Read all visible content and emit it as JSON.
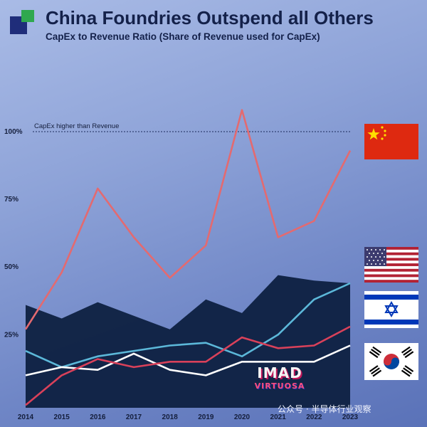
{
  "header": {
    "title": "China Foundries Outspend all Others",
    "subtitle": "CapEx to Revenue Ratio (Share of Revenue used for CapEx)"
  },
  "annotation": "CapEx higher than Revenue",
  "watermark": "公众号 · 半导体行业观察",
  "stamp": {
    "line1": "IMAD",
    "line2": "VIRTUOSA"
  },
  "colors": {
    "China": "#e36a70",
    "United States": "#0f2143",
    "Israel": "#5cb8d9",
    "South Korea": "#ffffff",
    "red_line_2": "#d9415a"
  },
  "flags": [
    "China",
    "United States",
    "Israel",
    "South Korea"
  ],
  "chart_data": {
    "type": "line",
    "title": "China Foundries Outspend all Others",
    "subtitle": "CapEx to Revenue Ratio (Share of Revenue used for CapEx)",
    "x": [
      "2014",
      "2015",
      "2016",
      "2017",
      "2018",
      "2019",
      "2020",
      "2021",
      "2022",
      "2023"
    ],
    "y_ticks": [
      "25%",
      "50%",
      "75%",
      "100%"
    ],
    "ylim": [
      -0.02,
      1.12
    ],
    "reference_line": {
      "y": 1.0,
      "label": "CapEx higher than Revenue"
    },
    "series": [
      {
        "flag": "United States",
        "style": "area",
        "values": [
          0.36,
          0.31,
          0.37,
          0.32,
          0.27,
          0.38,
          0.33,
          0.47,
          0.45,
          0.44
        ]
      },
      {
        "flag": "China",
        "style": "line",
        "values": [
          0.27,
          0.48,
          0.79,
          0.61,
          0.46,
          0.58,
          1.08,
          0.61,
          0.67,
          0.93
        ]
      },
      {
        "flag": "Israel",
        "style": "line",
        "values": [
          0.19,
          0.13,
          0.17,
          0.19,
          0.21,
          0.22,
          0.17,
          0.25,
          0.38,
          0.44
        ]
      },
      {
        "flag": "South Korea",
        "style": "line",
        "values": [
          0.1,
          0.13,
          0.12,
          0.18,
          0.12,
          0.1,
          0.15,
          0.15,
          0.15,
          0.21
        ]
      },
      {
        "flag": "",
        "style": "line",
        "values": [
          -0.01,
          0.1,
          0.16,
          0.13,
          0.15,
          0.15,
          0.24,
          0.2,
          0.21,
          0.28
        ]
      }
    ]
  }
}
